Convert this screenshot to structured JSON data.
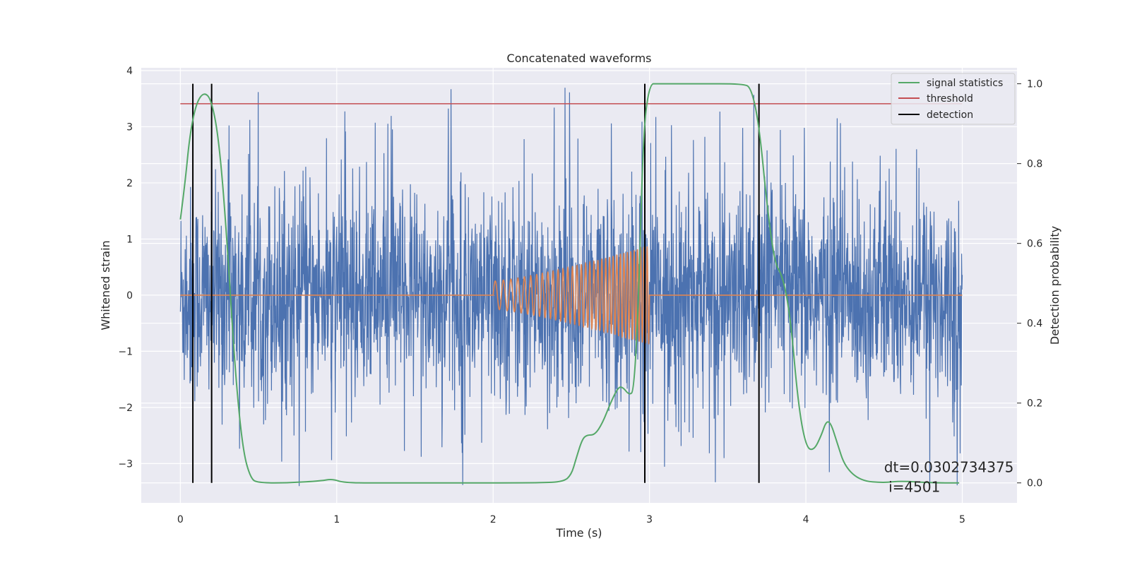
{
  "chart_data": {
    "type": "line",
    "title": "Concatenated waveforms",
    "xlabel": "Time (s)",
    "ylabel": "Whitened strain",
    "ylabel_right": "Detection probability",
    "xlim": [
      -0.25,
      5.35
    ],
    "ylim": [
      -3.7,
      4.05
    ],
    "ylim_right": [
      -0.05,
      1.04
    ],
    "x_ticks": [
      0,
      1,
      2,
      3,
      4,
      5
    ],
    "x_tick_labels": [
      "0",
      "1",
      "2",
      "3",
      "4",
      "5"
    ],
    "y_ticks": [
      -3,
      -2,
      -1,
      0,
      1,
      2,
      3,
      4
    ],
    "y_tick_labels": [
      "−3",
      "−2",
      "−1",
      "0",
      "1",
      "2",
      "3",
      "4"
    ],
    "y_right_ticks": [
      0.0,
      0.2,
      0.4,
      0.6,
      0.8,
      1.0
    ],
    "y_right_tick_labels": [
      "0.0",
      "0.2",
      "0.4",
      "0.6",
      "0.8",
      "1.0"
    ],
    "grid": true,
    "legend_position": "top-right",
    "legend": [
      "signal statistics",
      "threshold",
      "detection"
    ],
    "colors": {
      "strain": "#4c72b0",
      "injection": "#dd8452",
      "signal_statistics": "#55a868",
      "threshold": "#c44e52",
      "detection": "#000000",
      "plot_bg": "#eaeaf2",
      "grid": "#ffffff"
    },
    "strain_noise": {
      "x_range": [
        0,
        5
      ],
      "amplitude_core": 0.85,
      "spike_max": 3.7,
      "spike_min": -3.4
    },
    "injection_chirp": {
      "x_range": [
        2.0,
        3.0
      ],
      "amp_start": 0.25,
      "amp_end": 0.88
    },
    "threshold": 0.95,
    "signal_statistics": {
      "x": [
        0.0,
        0.03,
        0.06,
        0.1,
        0.15,
        0.2,
        0.25,
        0.3,
        0.35,
        0.4,
        0.45,
        0.5,
        0.7,
        0.9,
        0.97,
        1.05,
        1.3,
        1.8,
        2.3,
        2.45,
        2.5,
        2.53,
        2.57,
        2.6,
        2.65,
        2.7,
        2.75,
        2.8,
        2.83,
        2.87,
        2.9,
        2.93,
        2.96,
        3.0,
        3.05,
        3.3,
        3.6,
        3.65,
        3.7,
        3.75,
        3.8,
        3.85,
        3.9,
        3.95,
        4.0,
        4.05,
        4.1,
        4.13,
        4.16,
        4.2,
        4.25,
        4.35,
        4.5,
        4.6,
        4.8,
        4.98
      ],
      "y": [
        0.66,
        0.75,
        0.87,
        0.95,
        0.98,
        0.96,
        0.85,
        0.6,
        0.28,
        0.08,
        0.01,
        0.0,
        0.0,
        0.005,
        0.01,
        0.0,
        0.0,
        0.0,
        0.0,
        0.003,
        0.02,
        0.06,
        0.11,
        0.12,
        0.12,
        0.15,
        0.2,
        0.24,
        0.24,
        0.22,
        0.23,
        0.45,
        0.88,
        1.0,
        1.0,
        1.0,
        1.0,
        0.99,
        0.9,
        0.7,
        0.55,
        0.52,
        0.42,
        0.2,
        0.09,
        0.08,
        0.12,
        0.155,
        0.15,
        0.1,
        0.04,
        0.005,
        0.0,
        0.005,
        0.0,
        0.0
      ]
    },
    "detections": [
      0.08,
      0.2,
      2.97,
      3.7
    ],
    "annotation": {
      "line1": "dt=0.0302734375",
      "line2": " i=4501",
      "x": 4.5,
      "y": -3.05
    }
  }
}
